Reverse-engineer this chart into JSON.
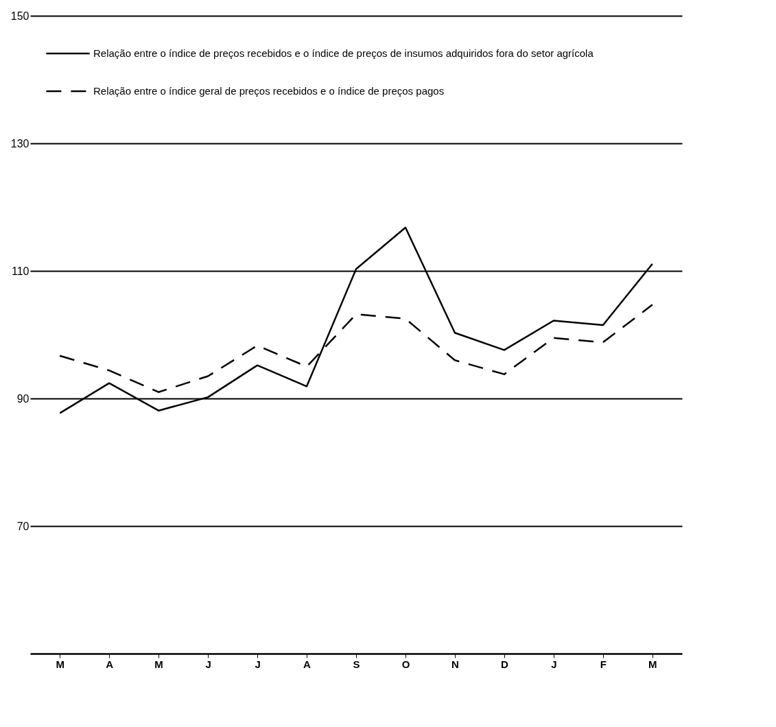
{
  "chart_data": {
    "type": "line",
    "categories": [
      "M",
      "A",
      "M",
      "J",
      "J",
      "A",
      "S",
      "O",
      "N",
      "D",
      "J",
      "F",
      "M"
    ],
    "series": [
      {
        "name": "Relação entre o índice de preços recebidos e o índice de preços de insumos adquiridos fora do setor agrícola",
        "color": "#000000",
        "line_style": "solid",
        "values": [
          87.7,
          92.4,
          88.1,
          90.2,
          95.2,
          91.9,
          110.3,
          116.8,
          100.3,
          97.6,
          102.2,
          101.5,
          111.1
        ]
      },
      {
        "name": "Relação entre o índice geral de preços recebidos e o índice de preços pagos",
        "color": "#000000",
        "line_style": "dashed",
        "values": [
          96.7,
          94.4,
          91.0,
          93.5,
          98.3,
          95.0,
          103.2,
          102.5,
          96.0,
          93.8,
          99.5,
          98.8,
          104.7
        ]
      }
    ],
    "ylim": [
      50,
      150
    ],
    "yticks": [
      70,
      90,
      110,
      130,
      150
    ],
    "grid": "y",
    "legend": "top left"
  }
}
